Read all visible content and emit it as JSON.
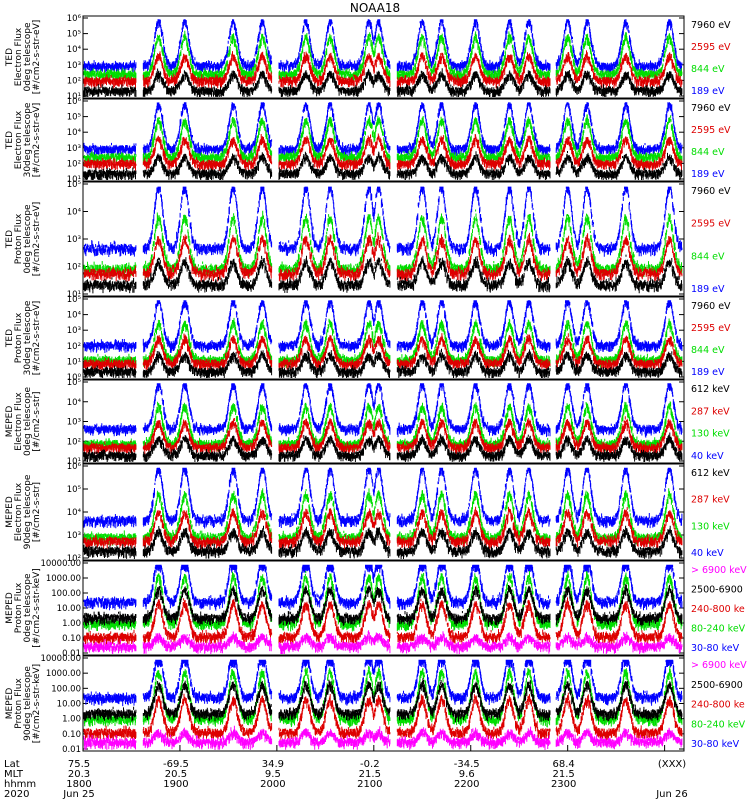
{
  "title": "NOAA18",
  "colors": {
    "blue": "#0000ff",
    "red": "#dd0000",
    "green": "#00dd00",
    "black": "#000000",
    "magenta": "#ff00ff"
  },
  "chart_data": [
    {
      "type": "line",
      "ylabel": [
        "TED",
        "Electron Flux",
        "0deg telescope",
        "[#/cm2-s-str-eV]"
      ],
      "yscale": "log",
      "yticks": [
        "10¹",
        "10²",
        "10³",
        "10⁴",
        "10⁵",
        "10⁶"
      ],
      "legend": [
        {
          "label": "7960 eV",
          "color": "#000000"
        },
        {
          "label": "2595 eV",
          "color": "#dd0000"
        },
        {
          "label": "844 eV",
          "color": "#00dd00"
        },
        {
          "label": "189 eV",
          "color": "#0000ff"
        }
      ]
    },
    {
      "type": "line",
      "ylabel": [
        "TED",
        "Electron Flux",
        "30deg telescope",
        "[#/cm2-s-str-eV]"
      ],
      "yscale": "log",
      "yticks": [
        "10¹",
        "10²",
        "10³",
        "10⁴",
        "10⁵",
        "10⁶"
      ],
      "legend": [
        {
          "label": "7960 eV",
          "color": "#000000"
        },
        {
          "label": "2595 eV",
          "color": "#dd0000"
        },
        {
          "label": "844 eV",
          "color": "#00dd00"
        },
        {
          "label": "189 eV",
          "color": "#0000ff"
        }
      ]
    },
    {
      "type": "line",
      "ylabel": [
        "TED",
        "Proton Flux",
        "0deg telescope",
        "[#/cm2-s-str-eV]"
      ],
      "yscale": "log",
      "yticks": [
        "10¹",
        "10²",
        "10³",
        "10⁴",
        "10⁵"
      ],
      "legend": [
        {
          "label": "7960 eV",
          "color": "#000000"
        },
        {
          "label": "2595 eV",
          "color": "#dd0000"
        },
        {
          "label": "844 eV",
          "color": "#00dd00"
        },
        {
          "label": "189 eV",
          "color": "#0000ff"
        }
      ]
    },
    {
      "type": "line",
      "ylabel": [
        "TED",
        "Proton Flux",
        "30deg telescope",
        "[#/cm2-s-str-eV]"
      ],
      "yscale": "log",
      "yticks": [
        "10⁰",
        "10¹",
        "10²",
        "10³",
        "10⁴",
        "10⁵"
      ],
      "legend": [
        {
          "label": "7960 eV",
          "color": "#000000"
        },
        {
          "label": "2595 eV",
          "color": "#dd0000"
        },
        {
          "label": "844 eV",
          "color": "#00dd00"
        },
        {
          "label": "189 eV",
          "color": "#0000ff"
        }
      ]
    },
    {
      "type": "line",
      "ylabel": [
        "MEPED",
        "Electron Flux",
        "0deg telescope",
        "[#/cm2-s-str]"
      ],
      "yscale": "log",
      "yticks": [
        "10¹",
        "10²",
        "10³",
        "10⁴",
        "10⁵"
      ],
      "legend": [
        {
          "label": "612 keV",
          "color": "#000000"
        },
        {
          "label": "287 keV",
          "color": "#dd0000"
        },
        {
          "label": "130 keV",
          "color": "#00dd00"
        },
        {
          "label": "40 keV",
          "color": "#0000ff"
        }
      ]
    },
    {
      "type": "line",
      "ylabel": [
        "MEPED",
        "Electron Flux",
        "90deg telescope",
        "[#/cm2-s-str]"
      ],
      "yscale": "log",
      "yticks": [
        "10²",
        "10³",
        "10⁴",
        "10⁵",
        "10⁶"
      ],
      "legend": [
        {
          "label": "612 keV",
          "color": "#000000"
        },
        {
          "label": "287 keV",
          "color": "#dd0000"
        },
        {
          "label": "130 keV",
          "color": "#00dd00"
        },
        {
          "label": "40 keV",
          "color": "#0000ff"
        }
      ]
    },
    {
      "type": "line",
      "ylabel": [
        "MEPED",
        "Proton Flux",
        "0deg telescope",
        "[#/cm2-s-str-keV]"
      ],
      "yscale": "log",
      "yticks": [
        "0.01",
        "0.10",
        "1.00",
        "10.00",
        "100.00",
        "1000.00",
        "10000.00"
      ],
      "legend": [
        {
          "label": "> 6900 keV",
          "color": "#ff00ff"
        },
        {
          "label": "2500-6900",
          "color": "#000000"
        },
        {
          "label": "240-800 ke",
          "color": "#dd0000"
        },
        {
          "label": "80-240 keV",
          "color": "#00dd00"
        },
        {
          "label": "30-80 keV",
          "color": "#0000ff"
        }
      ]
    },
    {
      "type": "line",
      "ylabel": [
        "MEPED",
        "Proton Flux",
        "90deg telescope",
        "[#/cm2-s-str-keV]"
      ],
      "yscale": "log",
      "yticks": [
        "0.01",
        "0.10",
        "1.00",
        "10.00",
        "100.00",
        "1000.00",
        "10000.00"
      ],
      "legend": [
        {
          "label": "> 6900 keV",
          "color": "#ff00ff"
        },
        {
          "label": "2500-6900",
          "color": "#000000"
        },
        {
          "label": "240-800 ke",
          "color": "#dd0000"
        },
        {
          "label": "80-240 keV",
          "color": "#00dd00"
        },
        {
          "label": "30-80 keV",
          "color": "#0000ff"
        }
      ]
    }
  ],
  "footer": {
    "row_labels": [
      "Lat",
      "MLT",
      "hhmm",
      "2020"
    ],
    "columns": [
      {
        "lat": "75.5",
        "mlt": "20.3",
        "hhmm": "1800",
        "date": "Jun 25"
      },
      {
        "lat": "-69.5",
        "mlt": "20.5",
        "hhmm": "1900",
        "date": ""
      },
      {
        "lat": "34.9",
        "mlt": "9.5",
        "hhmm": "2000",
        "date": ""
      },
      {
        "lat": "-0.2",
        "mlt": "21.5",
        "hhmm": "2100",
        "date": ""
      },
      {
        "lat": "-34.5",
        "mlt": "9.6",
        "hhmm": "2200",
        "date": ""
      },
      {
        "lat": "68.4",
        "mlt": "21.5",
        "hhmm": "2300",
        "date": ""
      },
      {
        "lat": "(XXX)",
        "mlt": "",
        "hhmm": "",
        "date": "Jun 26"
      }
    ]
  }
}
